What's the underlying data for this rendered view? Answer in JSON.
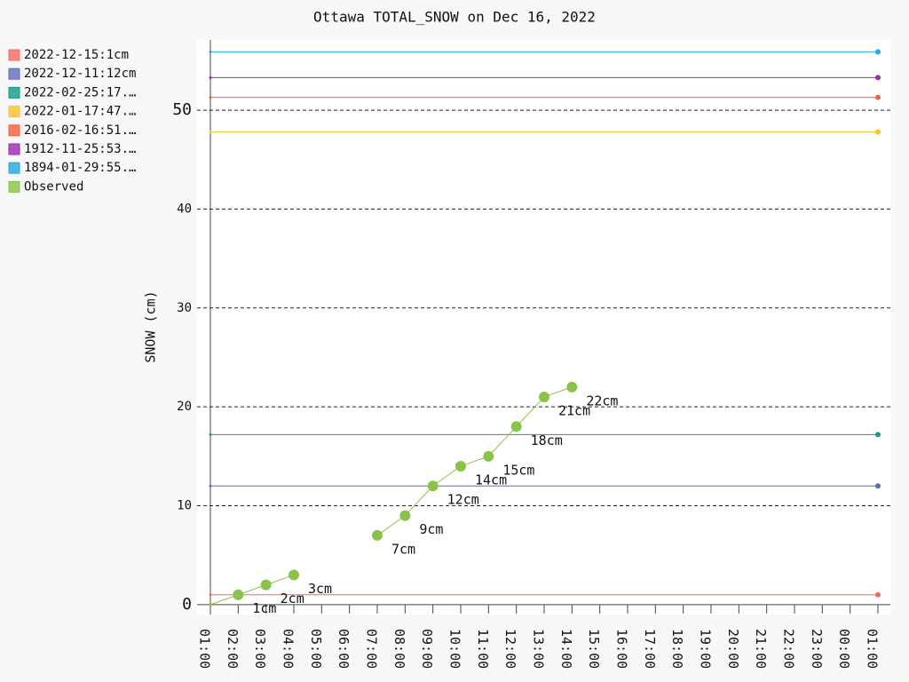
{
  "chart_data": {
    "type": "line",
    "title": "Ottawa TOTAL_SNOW on Dec 16, 2022",
    "y_label": "SNOW (cm)",
    "categories": [
      "01:00",
      "02:00",
      "03:00",
      "04:00",
      "05:00",
      "06:00",
      "07:00",
      "08:00",
      "09:00",
      "10:00",
      "11:00",
      "12:00",
      "13:00",
      "14:00",
      "15:00",
      "16:00",
      "17:00",
      "18:00",
      "19:00",
      "20:00",
      "21:00",
      "22:00",
      "23:00",
      "00:00",
      "01:00"
    ],
    "ylim": [
      -1,
      57.1
    ],
    "yticks": [
      0,
      10,
      20,
      30,
      40,
      50
    ],
    "grid": true,
    "legend": "left",
    "series": [
      {
        "name": "2022-12-15:1cm",
        "color": "#f26b63",
        "values": [
          1,
          1,
          1,
          1,
          1,
          1,
          1,
          1,
          1,
          1,
          1,
          1,
          1,
          1,
          1,
          1,
          1,
          1,
          1,
          1,
          1,
          1,
          1,
          1,
          1
        ]
      },
      {
        "name": "2022-12-11:12cm",
        "color": "#5c6bc0",
        "values": [
          12,
          12,
          12,
          12,
          12,
          12,
          12,
          12,
          12,
          12,
          12,
          12,
          12,
          12,
          12,
          12,
          12,
          12,
          12,
          12,
          12,
          12,
          12,
          12,
          12
        ]
      },
      {
        "name": "2022-02-25:17.…",
        "color": "#14998a",
        "values": [
          17.2,
          17.2,
          17.2,
          17.2,
          17.2,
          17.2,
          17.2,
          17.2,
          17.2,
          17.2,
          17.2,
          17.2,
          17.2,
          17.2,
          17.2,
          17.2,
          17.2,
          17.2,
          17.2,
          17.2,
          17.2,
          17.2,
          17.2,
          17.2,
          17.2
        ]
      },
      {
        "name": "2022-01-17:47.…",
        "color": "#fbc02d",
        "values": [
          47.8,
          47.8,
          47.8,
          47.8,
          47.8,
          47.8,
          47.8,
          47.8,
          47.8,
          47.8,
          47.8,
          47.8,
          47.8,
          47.8,
          47.8,
          47.8,
          47.8,
          47.8,
          47.8,
          47.8,
          47.8,
          47.8,
          47.8,
          47.8,
          47.8
        ]
      },
      {
        "name": "2016-02-16:51.…",
        "color": "#f4603e",
        "values": [
          51.3,
          51.3,
          51.3,
          51.3,
          51.3,
          51.3,
          51.3,
          51.3,
          51.3,
          51.3,
          51.3,
          51.3,
          51.3,
          51.3,
          51.3,
          51.3,
          51.3,
          51.3,
          51.3,
          51.3,
          51.3,
          51.3,
          51.3,
          51.3,
          51.3
        ]
      },
      {
        "name": "1912-11-25:53.…",
        "color": "#9c27b0",
        "values": [
          53.3,
          53.3,
          53.3,
          53.3,
          53.3,
          53.3,
          53.3,
          53.3,
          53.3,
          53.3,
          53.3,
          53.3,
          53.3,
          53.3,
          53.3,
          53.3,
          53.3,
          53.3,
          53.3,
          53.3,
          53.3,
          53.3,
          53.3,
          53.3,
          53.3
        ]
      },
      {
        "name": "1894-01-29:55.…",
        "color": "#1fa9e1",
        "values": [
          55.9,
          55.9,
          55.9,
          55.9,
          55.9,
          55.9,
          55.9,
          55.9,
          55.9,
          55.9,
          55.9,
          55.9,
          55.9,
          55.9,
          55.9,
          55.9,
          55.9,
          55.9,
          55.9,
          55.9,
          55.9,
          55.9,
          55.9,
          55.9,
          55.9
        ]
      },
      {
        "name": "Observed",
        "color": "#8bc34a",
        "observed": true,
        "values": [
          0,
          1,
          2,
          3,
          null,
          null,
          7,
          9,
          12,
          14,
          15,
          18,
          21,
          22,
          null,
          null,
          null,
          null,
          null,
          null,
          null,
          null,
          null,
          null,
          null
        ],
        "value_labels": [
          null,
          "1cm",
          "2cm",
          "3cm",
          null,
          null,
          "7cm",
          "9cm",
          "12cm",
          "14cm",
          "15cm",
          "18cm",
          "21cm",
          "22cm",
          null,
          null,
          null,
          null,
          null,
          null,
          null,
          null,
          null,
          null,
          null
        ]
      }
    ]
  }
}
